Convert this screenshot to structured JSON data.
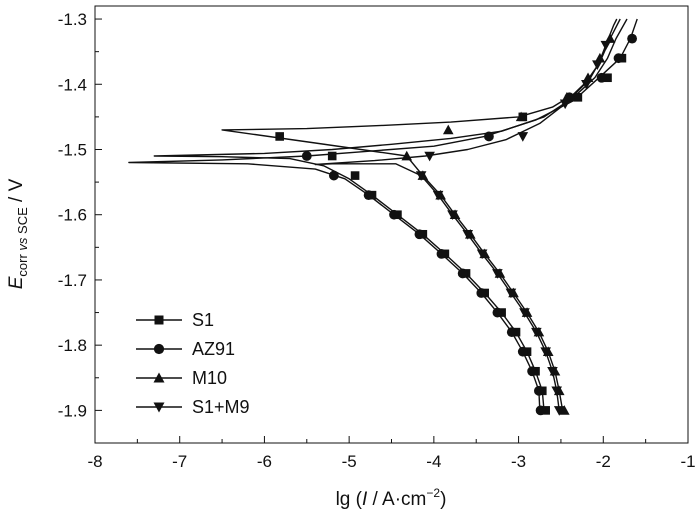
{
  "chart_data": {
    "type": "line",
    "xlabel_main": "lg (",
    "xlabel_italic": "I",
    "xlabel_units": " / A·cm",
    "xlabel_sup": "−2",
    "xlabel_close": ")",
    "ylabel_main": "E",
    "ylabel_sub_a": "corr ",
    "ylabel_sub_b": "vs",
    "ylabel_sub_c": " SCE",
    "ylabel_units": " / V",
    "xlim": [
      -8,
      -1
    ],
    "ylim": [
      -1.95,
      -1.28
    ],
    "x_ticks": [
      -8,
      -7,
      -6,
      -5,
      -4,
      -3,
      -2,
      -1
    ],
    "x_tick_labels": [
      "-8",
      "-7",
      "-6",
      "-5",
      "-4",
      "-3",
      "-2",
      "-1"
    ],
    "y_ticks": [
      -1.3,
      -1.4,
      -1.5,
      -1.6,
      -1.7,
      -1.8,
      -1.9
    ],
    "y_tick_labels": [
      "-1.3",
      "-1.4",
      "-1.5",
      "-1.6",
      "-1.7",
      "-1.8",
      "-1.9"
    ],
    "legend_position": "bottom-left",
    "series": [
      {
        "name": "S1",
        "marker": "square",
        "line": [
          [
            -2.7,
            -1.9
          ],
          [
            -2.72,
            -1.87
          ],
          [
            -2.8,
            -1.84
          ],
          [
            -2.9,
            -1.81
          ],
          [
            -3.03,
            -1.78
          ],
          [
            -3.2,
            -1.75
          ],
          [
            -3.4,
            -1.72
          ],
          [
            -3.62,
            -1.69
          ],
          [
            -3.87,
            -1.66
          ],
          [
            -4.13,
            -1.63
          ],
          [
            -4.43,
            -1.6
          ],
          [
            -4.73,
            -1.57
          ],
          [
            -5.0,
            -1.545
          ],
          [
            -5.3,
            -1.525
          ],
          [
            -5.7,
            -1.514
          ],
          [
            -6.5,
            -1.511
          ],
          [
            -7.3,
            -1.51
          ],
          [
            -6.0,
            -1.506
          ],
          [
            -5.2,
            -1.5
          ],
          [
            -4.5,
            -1.492
          ],
          [
            -3.8,
            -1.483
          ],
          [
            -3.2,
            -1.472
          ],
          [
            -2.7,
            -1.45
          ],
          [
            -2.35,
            -1.42
          ],
          [
            -2.1,
            -1.39
          ],
          [
            -1.95,
            -1.36
          ],
          [
            -1.85,
            -1.33
          ],
          [
            -1.72,
            -1.3
          ]
        ],
        "markers": [
          [
            -5.82,
            -1.48
          ],
          [
            -5.2,
            -1.51
          ],
          [
            -4.93,
            -1.54
          ],
          [
            -4.73,
            -1.57
          ],
          [
            -4.43,
            -1.6
          ],
          [
            -4.13,
            -1.63
          ],
          [
            -3.87,
            -1.66
          ],
          [
            -3.62,
            -1.69
          ],
          [
            -3.4,
            -1.72
          ],
          [
            -3.2,
            -1.75
          ],
          [
            -3.03,
            -1.78
          ],
          [
            -2.9,
            -1.81
          ],
          [
            -2.8,
            -1.84
          ],
          [
            -2.72,
            -1.87
          ],
          [
            -2.68,
            -1.9
          ],
          [
            -2.95,
            -1.45
          ],
          [
            -2.3,
            -1.42
          ],
          [
            -1.95,
            -1.39
          ],
          [
            -1.78,
            -1.36
          ]
        ]
      },
      {
        "name": "AZ91",
        "marker": "circle",
        "line": [
          [
            -2.75,
            -1.9
          ],
          [
            -2.76,
            -1.87
          ],
          [
            -2.84,
            -1.84
          ],
          [
            -2.95,
            -1.81
          ],
          [
            -3.08,
            -1.78
          ],
          [
            -3.25,
            -1.75
          ],
          [
            -3.44,
            -1.72
          ],
          [
            -3.66,
            -1.69
          ],
          [
            -3.91,
            -1.66
          ],
          [
            -4.17,
            -1.63
          ],
          [
            -4.47,
            -1.6
          ],
          [
            -4.77,
            -1.57
          ],
          [
            -5.05,
            -1.545
          ],
          [
            -5.4,
            -1.53
          ],
          [
            -6.2,
            -1.522
          ],
          [
            -7.6,
            -1.52
          ],
          [
            -6.5,
            -1.516
          ],
          [
            -5.5,
            -1.51
          ],
          [
            -4.8,
            -1.503
          ],
          [
            -4.0,
            -1.495
          ],
          [
            -3.4,
            -1.48
          ],
          [
            -2.8,
            -1.455
          ],
          [
            -2.35,
            -1.425
          ],
          [
            -2.05,
            -1.39
          ],
          [
            -1.8,
            -1.36
          ],
          [
            -1.68,
            -1.33
          ],
          [
            -1.6,
            -1.3
          ]
        ],
        "markers": [
          [
            -5.5,
            -1.51
          ],
          [
            -5.18,
            -1.54
          ],
          [
            -4.77,
            -1.57
          ],
          [
            -4.47,
            -1.6
          ],
          [
            -4.17,
            -1.63
          ],
          [
            -3.91,
            -1.66
          ],
          [
            -3.66,
            -1.69
          ],
          [
            -3.44,
            -1.72
          ],
          [
            -3.25,
            -1.75
          ],
          [
            -3.08,
            -1.78
          ],
          [
            -2.95,
            -1.81
          ],
          [
            -2.84,
            -1.84
          ],
          [
            -2.76,
            -1.87
          ],
          [
            -2.74,
            -1.9
          ],
          [
            -3.35,
            -1.48
          ],
          [
            -2.4,
            -1.42
          ],
          [
            -2.02,
            -1.39
          ],
          [
            -1.82,
            -1.36
          ],
          [
            -1.66,
            -1.33
          ]
        ]
      },
      {
        "name": "M10",
        "marker": "triangle-up",
        "line": [
          [
            -2.48,
            -1.9
          ],
          [
            -2.52,
            -1.87
          ],
          [
            -2.57,
            -1.84
          ],
          [
            -2.65,
            -1.81
          ],
          [
            -2.76,
            -1.78
          ],
          [
            -2.9,
            -1.75
          ],
          [
            -3.06,
            -1.72
          ],
          [
            -3.22,
            -1.69
          ],
          [
            -3.4,
            -1.66
          ],
          [
            -3.57,
            -1.63
          ],
          [
            -3.75,
            -1.6
          ],
          [
            -3.92,
            -1.57
          ],
          [
            -4.13,
            -1.54
          ],
          [
            -4.32,
            -1.51
          ],
          [
            -5.4,
            -1.49
          ],
          [
            -6.5,
            -1.47
          ],
          [
            -5.5,
            -1.468
          ],
          [
            -4.6,
            -1.463
          ],
          [
            -3.8,
            -1.458
          ],
          [
            -3.0,
            -1.45
          ],
          [
            -2.6,
            -1.435
          ],
          [
            -2.35,
            -1.415
          ],
          [
            -2.15,
            -1.39
          ],
          [
            -2.02,
            -1.36
          ],
          [
            -1.92,
            -1.33
          ],
          [
            -1.8,
            -1.3
          ]
        ],
        "markers": [
          [
            -4.32,
            -1.51
          ],
          [
            -4.13,
            -1.54
          ],
          [
            -3.92,
            -1.57
          ],
          [
            -3.75,
            -1.6
          ],
          [
            -3.57,
            -1.63
          ],
          [
            -3.4,
            -1.66
          ],
          [
            -3.22,
            -1.69
          ],
          [
            -3.06,
            -1.72
          ],
          [
            -2.9,
            -1.75
          ],
          [
            -2.76,
            -1.78
          ],
          [
            -2.65,
            -1.81
          ],
          [
            -2.57,
            -1.84
          ],
          [
            -2.52,
            -1.87
          ],
          [
            -2.46,
            -1.9
          ],
          [
            -3.83,
            -1.47
          ],
          [
            -2.97,
            -1.45
          ],
          [
            -2.43,
            -1.42
          ],
          [
            -2.18,
            -1.39
          ],
          [
            -2.04,
            -1.36
          ],
          [
            -1.92,
            -1.33
          ]
        ]
      },
      {
        "name": "S1+M9",
        "marker": "triangle-down",
        "line": [
          [
            -2.52,
            -1.9
          ],
          [
            -2.55,
            -1.87
          ],
          [
            -2.6,
            -1.84
          ],
          [
            -2.68,
            -1.81
          ],
          [
            -2.79,
            -1.78
          ],
          [
            -2.93,
            -1.75
          ],
          [
            -3.09,
            -1.72
          ],
          [
            -3.25,
            -1.69
          ],
          [
            -3.43,
            -1.66
          ],
          [
            -3.6,
            -1.63
          ],
          [
            -3.78,
            -1.6
          ],
          [
            -3.95,
            -1.57
          ],
          [
            -4.15,
            -1.54
          ],
          [
            -4.45,
            -1.522
          ],
          [
            -5.2,
            -1.522
          ],
          [
            -5.4,
            -1.523
          ],
          [
            -4.7,
            -1.517
          ],
          [
            -4.1,
            -1.51
          ],
          [
            -3.6,
            -1.5
          ],
          [
            -3.15,
            -1.485
          ],
          [
            -2.75,
            -1.46
          ],
          [
            -2.45,
            -1.43
          ],
          [
            -2.22,
            -1.4
          ],
          [
            -2.06,
            -1.37
          ],
          [
            -1.97,
            -1.34
          ],
          [
            -1.88,
            -1.31
          ],
          [
            -1.84,
            -1.3
          ]
        ],
        "markers": [
          [
            -4.15,
            -1.54
          ],
          [
            -3.95,
            -1.57
          ],
          [
            -3.78,
            -1.6
          ],
          [
            -3.6,
            -1.63
          ],
          [
            -3.43,
            -1.66
          ],
          [
            -3.25,
            -1.69
          ],
          [
            -3.09,
            -1.72
          ],
          [
            -2.93,
            -1.75
          ],
          [
            -2.79,
            -1.78
          ],
          [
            -2.68,
            -1.81
          ],
          [
            -2.6,
            -1.84
          ],
          [
            -2.55,
            -1.87
          ],
          [
            -2.52,
            -1.9
          ],
          [
            -4.05,
            -1.51
          ],
          [
            -2.95,
            -1.48
          ],
          [
            -2.45,
            -1.43
          ],
          [
            -2.2,
            -1.4
          ],
          [
            -2.07,
            -1.37
          ],
          [
            -1.97,
            -1.34
          ]
        ]
      }
    ]
  }
}
